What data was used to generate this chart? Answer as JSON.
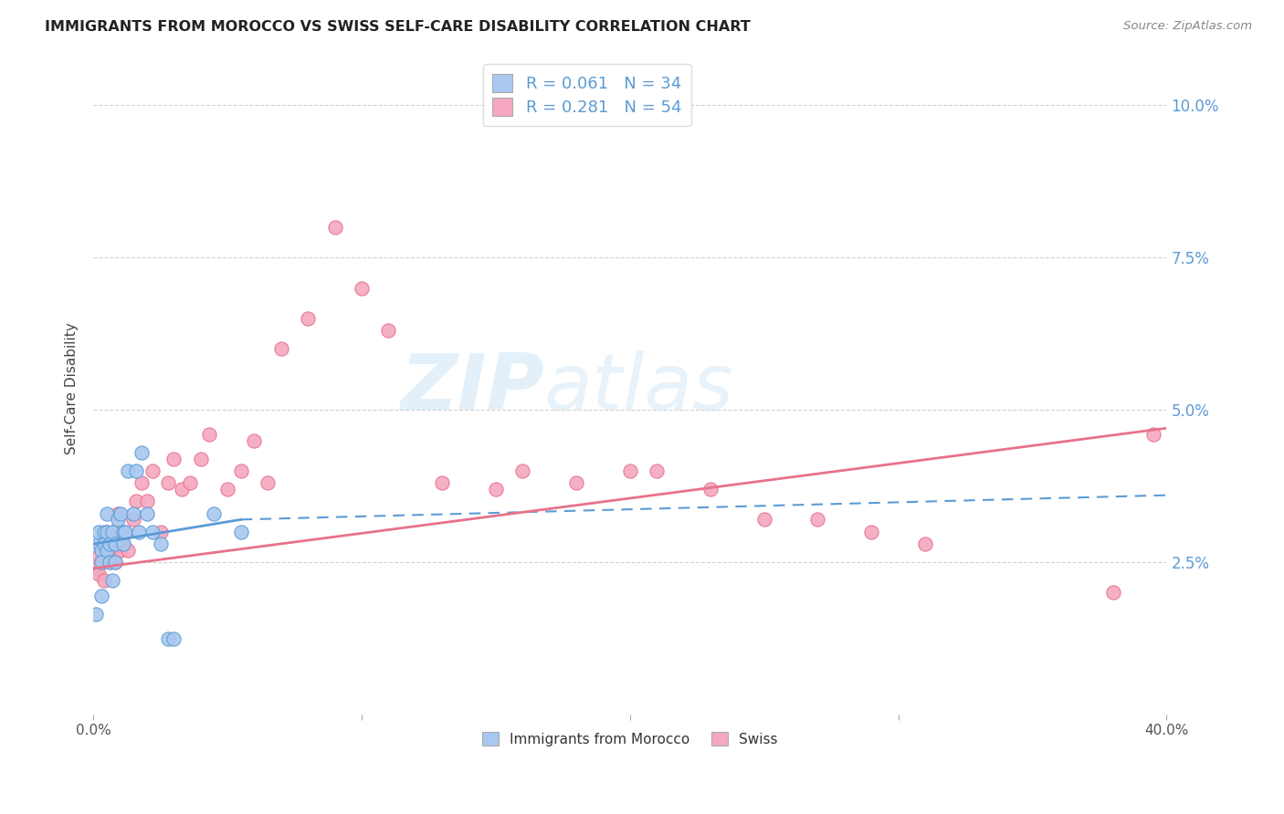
{
  "title": "IMMIGRANTS FROM MOROCCO VS SWISS SELF-CARE DISABILITY CORRELATION CHART",
  "source": "Source: ZipAtlas.com",
  "ylabel": "Self-Care Disability",
  "yticks": [
    0.0,
    0.025,
    0.05,
    0.075,
    0.1
  ],
  "ytick_labels": [
    "",
    "2.5%",
    "5.0%",
    "7.5%",
    "10.0%"
  ],
  "xlim": [
    0.0,
    0.4
  ],
  "ylim": [
    0.005,
    0.107
  ],
  "color_morocco": "#a8c8f0",
  "color_swiss": "#f5a8c0",
  "color_blue": "#5b9bd5",
  "color_pink": "#e8728a",
  "background_color": "#ffffff",
  "morocco_x": [
    0.001,
    0.002,
    0.002,
    0.003,
    0.003,
    0.003,
    0.004,
    0.004,
    0.005,
    0.005,
    0.005,
    0.006,
    0.006,
    0.007,
    0.007,
    0.008,
    0.008,
    0.009,
    0.01,
    0.011,
    0.011,
    0.012,
    0.013,
    0.015,
    0.016,
    0.017,
    0.018,
    0.02,
    0.022,
    0.025,
    0.028,
    0.03,
    0.045,
    0.055
  ],
  "morocco_y": [
    0.0165,
    0.028,
    0.03,
    0.027,
    0.025,
    0.0195,
    0.03,
    0.028,
    0.033,
    0.03,
    0.027,
    0.028,
    0.025,
    0.03,
    0.022,
    0.028,
    0.025,
    0.032,
    0.033,
    0.03,
    0.028,
    0.03,
    0.04,
    0.033,
    0.04,
    0.03,
    0.043,
    0.033,
    0.03,
    0.028,
    0.0125,
    0.0125,
    0.033,
    0.03
  ],
  "swiss_x": [
    0.001,
    0.002,
    0.002,
    0.003,
    0.003,
    0.004,
    0.004,
    0.005,
    0.005,
    0.006,
    0.006,
    0.007,
    0.007,
    0.008,
    0.008,
    0.009,
    0.01,
    0.011,
    0.012,
    0.013,
    0.015,
    0.016,
    0.018,
    0.02,
    0.022,
    0.025,
    0.028,
    0.03,
    0.033,
    0.036,
    0.04,
    0.043,
    0.05,
    0.055,
    0.06,
    0.065,
    0.07,
    0.08,
    0.09,
    0.1,
    0.11,
    0.13,
    0.15,
    0.16,
    0.18,
    0.2,
    0.21,
    0.23,
    0.25,
    0.27,
    0.29,
    0.31,
    0.38,
    0.395
  ],
  "swiss_y": [
    0.024,
    0.026,
    0.023,
    0.028,
    0.025,
    0.027,
    0.022,
    0.03,
    0.026,
    0.028,
    0.025,
    0.03,
    0.027,
    0.029,
    0.025,
    0.033,
    0.027,
    0.028,
    0.03,
    0.027,
    0.032,
    0.035,
    0.038,
    0.035,
    0.04,
    0.03,
    0.038,
    0.042,
    0.037,
    0.038,
    0.042,
    0.046,
    0.037,
    0.04,
    0.045,
    0.038,
    0.06,
    0.065,
    0.08,
    0.07,
    0.063,
    0.038,
    0.037,
    0.04,
    0.038,
    0.04,
    0.04,
    0.037,
    0.032,
    0.032,
    0.03,
    0.028,
    0.02,
    0.046
  ],
  "mor_line_x": [
    0.0,
    0.4
  ],
  "mor_line_y": [
    0.028,
    0.035
  ],
  "swiss_line_x": [
    0.0,
    0.4
  ],
  "swiss_line_y": [
    0.024,
    0.047
  ]
}
